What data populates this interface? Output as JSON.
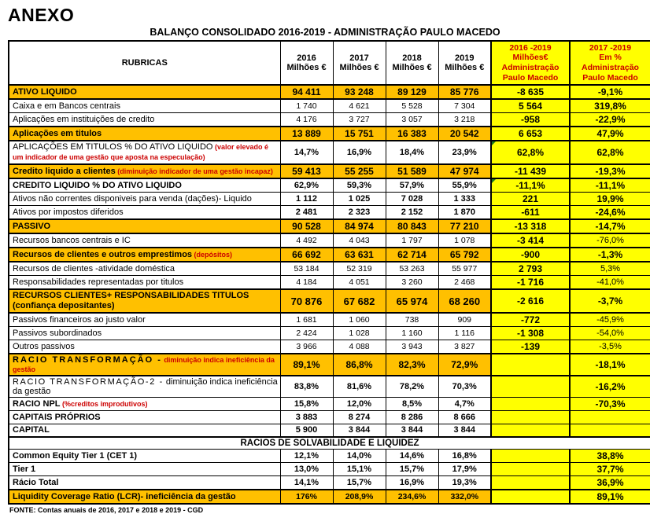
{
  "page": {
    "anexo": "ANEXO",
    "title": "BALANÇO CONSOLIDADO 2016-2019 - ADMINISTRAÇÃO PAULO MACEDO",
    "footer": "FONTE: Contas anuais de 2016,  2017 e 2018 e 2019 - CGD"
  },
  "colors": {
    "band": "#FFC000",
    "yellow": "#FFFF00",
    "red_text": "#CC0000",
    "marker_green": "#1C7A1C"
  },
  "header": {
    "rubricas": "RUBRICAS",
    "years": [
      {
        "year": "2016",
        "unit": "Milhões €"
      },
      {
        "year": "2017",
        "unit": "Milhões €"
      },
      {
        "year": "2018",
        "unit": "Milhões €"
      },
      {
        "year": "2019",
        "unit": "Milhões €"
      }
    ],
    "delta_abs": {
      "l1": "2016 -2019",
      "l2": "Milhões€",
      "l3": "Administração",
      "l4": "Paulo Macedo"
    },
    "delta_pct": {
      "l1": "2017 -2019",
      "l2": "Em %",
      "l3": "Administração",
      "l4": "Paulo Macedo"
    }
  },
  "rows": [
    {
      "label": "ATIVO LIQUIDO",
      "band": true,
      "lclass": "l-band",
      "vals": [
        "94 411",
        "93 248",
        "89 129",
        "85 776",
        "-8 635",
        "-9,1%"
      ],
      "vbold": true,
      "v5b": true,
      "v6b": true
    },
    {
      "label": "Caixa e em Bancos centrais",
      "lclass": "l-plain",
      "vals": [
        "1 740",
        "4 621",
        "5 528",
        "7 304",
        "5 564",
        "319,8%"
      ],
      "v5b": true,
      "v6b": true
    },
    {
      "label": "Aplicações em instituições de credito",
      "lclass": "l-plain",
      "vals": [
        "4 176",
        "3 727",
        "3 057",
        "3 218",
        "-958",
        "-22,9%"
      ],
      "v5b": true,
      "v6b": true
    },
    {
      "label": "Aplicações em titulos",
      "band": true,
      "lclass": "l-band",
      "vals": [
        "13 889",
        "15 751",
        "16 383",
        "20 542",
        "6 653",
        "47,9%"
      ],
      "vbold": true,
      "v5b": true,
      "v6b": true
    },
    {
      "label": "APLICAÇÕES EM TITULOS % DO ATIVO LIQUIDO",
      "note": "(valor elevado é um indicador de uma gestão que aposta na especulação)",
      "lclass": "l-caps",
      "vals": [
        "14,7%",
        "16,9%",
        "18,4%",
        "23,9%",
        "62,8%",
        "62,8%"
      ],
      "vbold": true,
      "v5b": true,
      "v6b": true,
      "marker5": true
    },
    {
      "label": "Credito liquido a clientes",
      "note": "(diminuição indicador de uma gestão incapaz)",
      "band": true,
      "lclass": "l-band",
      "vals": [
        "59 413",
        "55 255",
        "51 589",
        "47 974",
        "-11 439",
        "-19,3%"
      ],
      "vbold": true,
      "v5b": true,
      "v6b": true
    },
    {
      "label": "CREDITO LIQUIDO % DO ATIVO LIQUIDO",
      "lclass": "l-capsbold",
      "vals": [
        "62,9%",
        "59,3%",
        "57,9%",
        "55,9%",
        "-11,1%",
        "-11,1%"
      ],
      "vbold": true,
      "v5b": true,
      "v6b": true,
      "marker5": true
    },
    {
      "label": "Ativos não correntes disponiveis para venda (dações)- Liquido",
      "lclass": "l-plain",
      "vals": [
        "1 112",
        "1 025",
        "7 028",
        "1 333",
        "221",
        "19,9%"
      ],
      "vbold": true,
      "v5b": true,
      "v6b": true
    },
    {
      "label": "Ativos por impostos diferidos",
      "lclass": "l-plain",
      "vals": [
        "2 481",
        "2 323",
        "2 152",
        "1 870",
        "-611",
        "-24,6%"
      ],
      "vbold": true,
      "v5b": true,
      "v6b": true
    },
    {
      "label": "PASSIVO",
      "band": true,
      "lclass": "l-band",
      "vals": [
        "90 528",
        "84 974",
        "80 843",
        "77 210",
        "-13 318",
        "-14,7%"
      ],
      "vbold": true,
      "v5b": true,
      "v6b": true
    },
    {
      "label": "Recursos bancos centrais e IC",
      "lclass": "l-plain",
      "vals": [
        "4 492",
        "4 043",
        "1 797",
        "1 078",
        "-3 414",
        "-76,0%"
      ],
      "v5b": true,
      "v6b": false
    },
    {
      "label": "Recursos de clientes e outros emprestimos",
      "note": "(depósitos)",
      "band": true,
      "lclass": "l-band",
      "vals": [
        "66 692",
        "63 631",
        "62 714",
        "65 792",
        "-900",
        "-1,3%"
      ],
      "vbold": true,
      "v5b": true,
      "v6b": true
    },
    {
      "label": "Recursos de clientes -atividade doméstica",
      "lclass": "l-plain",
      "vals": [
        "53 184",
        "52 319",
        "53 263",
        "55 977",
        "2 793",
        "5,3%"
      ],
      "v5b": true,
      "v6b": false
    },
    {
      "label": "Responsabilidades representadas por titulos",
      "lclass": "l-plain",
      "vals": [
        "4 184",
        "4 051",
        "3 260",
        "2 468",
        "-1 716",
        "-41,0%"
      ],
      "v5b": true,
      "v6b": false
    },
    {
      "label": "RECURSOS CLIENTES+ RESPONSABILIDADES TITULOS",
      "note": "(confiança depositantes)",
      "note_black": true,
      "band": true,
      "lclass": "l-band-sm",
      "vclass": "vlg",
      "vals": [
        "70 876",
        "67 682",
        "65 974",
        "68 260",
        "-2 616",
        "-3,7%"
      ],
      "vbold": true,
      "v5b": true,
      "v6b": true
    },
    {
      "label": "Passivos financeiros ao justo valor",
      "lclass": "l-plain",
      "vals": [
        "1 681",
        "1 060",
        "738",
        "909",
        "-772",
        "-45,9%"
      ],
      "v5b": true,
      "v6b": false
    },
    {
      "label": "Passivos subordinados",
      "lclass": "l-plain",
      "vals": [
        "2 424",
        "1 028",
        "1 160",
        "1 116",
        "-1 308",
        "-54,0%"
      ],
      "v5b": true,
      "v6b": false
    },
    {
      "label": "Outros passivos",
      "lclass": "l-plain",
      "vals": [
        "3 966",
        "4 088",
        "3 943",
        "3 827",
        "-139",
        "-3,5%"
      ],
      "v5b": true,
      "v6b": false
    },
    {
      "label": "RACIO TRANSFORMAÇÃO -",
      "note": "diminuição indica ineficiência da gestão",
      "band": true,
      "lclass": "l-band-spaced",
      "vals": [
        "89,1%",
        "86,8%",
        "82,3%",
        "72,9%",
        "",
        "-18,1%"
      ],
      "vbold": true,
      "v5b": true,
      "v6b": true
    },
    {
      "label": "RACIO TRANSFORMAÇÃO-2 -",
      "note": "diminuição indica ineficiência da gestão",
      "note_black": true,
      "lclass": "l-spaced",
      "vals": [
        "83,8%",
        "81,6%",
        "78,2%",
        "70,3%",
        "",
        "-16,2%"
      ],
      "vbold": true,
      "v5b": true,
      "v6b": true
    },
    {
      "label": "RACIO NPL",
      "note": "(%creditos improdutivos)",
      "lclass": "l-boldlg",
      "vals": [
        "15,8%",
        "12,0%",
        "8,5%",
        "4,7%",
        "",
        "-70,3%"
      ],
      "vbold": true,
      "v5b": true,
      "v6b": true
    },
    {
      "label": "CAPITAIS PRÓPRIOS",
      "lclass": "l-boldlg",
      "vals": [
        "3 883",
        "8 274",
        "8 286",
        "8 666",
        "",
        ""
      ],
      "vbold": true,
      "v5b": true,
      "v6b": true
    },
    {
      "label": "CAPITAL",
      "lclass": "l-boldlg",
      "vals": [
        "5 900",
        "3 844",
        "3 844",
        "3 844",
        "",
        ""
      ],
      "vbold": true,
      "v5b": true,
      "v6b": true
    },
    {
      "section": true,
      "label": "RACIOS DE SOLVABILIDADE E LIQUIDEZ"
    },
    {
      "label": "Common Equity Tier 1 (CET 1)",
      "lclass": "l-bold",
      "vals": [
        "12,1%",
        "14,0%",
        "14,6%",
        "16,8%",
        "",
        "38,8%"
      ],
      "vbold": true,
      "v5b": true,
      "v6b": true
    },
    {
      "label": "Tier 1",
      "lclass": "l-bold",
      "vals": [
        "13,0%",
        "15,1%",
        "15,7%",
        "17,9%",
        "",
        "37,7%"
      ],
      "vbold": true,
      "v5b": true,
      "v6b": true
    },
    {
      "label": "Rácio Total",
      "lclass": "l-bold",
      "vals": [
        "14,1%",
        "15,7%",
        "16,9%",
        "19,3%",
        "",
        "36,9%"
      ],
      "vbold": true,
      "v5b": true,
      "v6b": true
    },
    {
      "label": "Liquidity Coverage Ratio (LCR)- ineficiência da gestão",
      "band": true,
      "lclass": "l-band-left",
      "vclass": "vsm",
      "vals": [
        "176%",
        "208,9%",
        "234,6%",
        "332,0%",
        "",
        "89,1%"
      ],
      "vbold": true,
      "v5b": true,
      "v6b": true
    }
  ]
}
